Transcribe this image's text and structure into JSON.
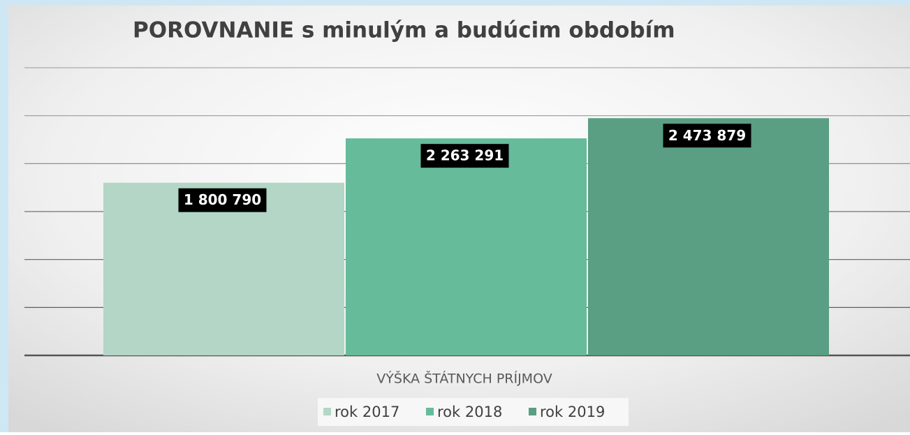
{
  "chart_data": {
    "type": "bar",
    "title": "POROVNANIE s minulým a budúcim obdobím",
    "categories": [
      "VÝŠKA ŠTÁTNYCH PRÍJMOV"
    ],
    "series": [
      {
        "name": "rok 2017",
        "color": "#b3d6c6",
        "values": [
          1800790
        ],
        "value_labels": [
          "1 800 790"
        ]
      },
      {
        "name": "rok 2018",
        "color": "#66bb9b",
        "values": [
          2263291
        ],
        "value_labels": [
          "2 263 291"
        ]
      },
      {
        "name": "rok 2019",
        "color": "#5a9e83",
        "values": [
          2473879
        ],
        "value_labels": [
          "2 473 879"
        ]
      }
    ],
    "ylim": [
      0,
      3000000
    ],
    "yticks": [
      0,
      500000,
      1000000,
      1500000,
      2000000,
      2500000,
      3000000
    ],
    "grid": true,
    "legend": "bottom"
  }
}
